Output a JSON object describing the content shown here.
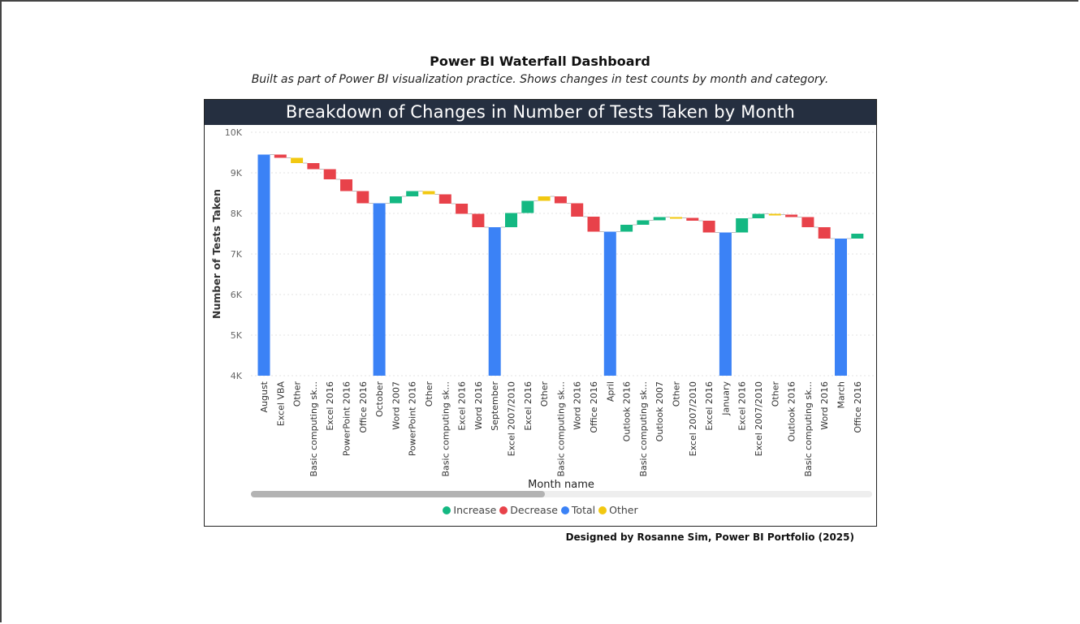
{
  "page": {
    "title": "Power BI Waterfall Dashboard",
    "subtitle": "Built as part of Power BI visualization practice. Shows changes in test counts by month and category.",
    "footer": "Designed by Rosanne Sim, Power BI Portfolio (2025)"
  },
  "colors": {
    "increase": "#14b882",
    "decrease": "#e8424a",
    "total": "#3b82f6",
    "other": "#f2c811",
    "title_bar": "#252f40"
  },
  "legend": [
    {
      "label": "Increase",
      "color_key": "increase"
    },
    {
      "label": "Decrease",
      "color_key": "decrease"
    },
    {
      "label": "Total",
      "color_key": "total"
    },
    {
      "label": "Other",
      "color_key": "other"
    }
  ],
  "chart_data": {
    "type": "waterfall",
    "title": "Breakdown of Changes in Number of Tests Taken by Month",
    "xlabel": "Month name",
    "ylabel": "Number of Tests Taken",
    "ylim": [
      4000,
      10000
    ],
    "yticks": [
      "4K",
      "5K",
      "6K",
      "7K",
      "8K",
      "9K",
      "10K"
    ],
    "grid": true,
    "legend_position": "bottom",
    "categories": [
      "August",
      "Excel VBA",
      "Other",
      "Basic computing sk...",
      "Excel 2016",
      "PowerPoint 2016",
      "Office 2016",
      "October",
      "Word 2007",
      "PowerPoint 2016",
      "Other",
      "Basic computing sk...",
      "Excel 2016",
      "Word 2016",
      "September",
      "Excel 2007/2010",
      "Excel 2016",
      "Other",
      "Basic computing sk...",
      "Word 2016",
      "Office 2016",
      "April",
      "Outlook 2016",
      "Basic computing sk...",
      "Outlook 2007",
      "Other",
      "Excel 2007/2010",
      "Excel 2016",
      "January",
      "Excel 2016",
      "Excel 2007/2010",
      "Other",
      "Outlook 2016",
      "Basic computing sk...",
      "Word 2016",
      "March",
      "Office 2016"
    ],
    "bars": [
      {
        "kind": "total",
        "start": 4000,
        "end": 9450
      },
      {
        "kind": "decrease",
        "start": 9450,
        "end": 9370
      },
      {
        "kind": "other",
        "start": 9370,
        "end": 9240
      },
      {
        "kind": "decrease",
        "start": 9240,
        "end": 9090
      },
      {
        "kind": "decrease",
        "start": 9090,
        "end": 8840
      },
      {
        "kind": "decrease",
        "start": 8840,
        "end": 8550
      },
      {
        "kind": "decrease",
        "start": 8550,
        "end": 8250
      },
      {
        "kind": "total",
        "start": 4000,
        "end": 8250
      },
      {
        "kind": "increase",
        "start": 8250,
        "end": 8420
      },
      {
        "kind": "increase",
        "start": 8420,
        "end": 8550
      },
      {
        "kind": "other",
        "start": 8550,
        "end": 8470
      },
      {
        "kind": "decrease",
        "start": 8470,
        "end": 8240
      },
      {
        "kind": "decrease",
        "start": 8240,
        "end": 7990
      },
      {
        "kind": "decrease",
        "start": 7990,
        "end": 7660
      },
      {
        "kind": "total",
        "start": 4000,
        "end": 7660
      },
      {
        "kind": "increase",
        "start": 7660,
        "end": 8010
      },
      {
        "kind": "increase",
        "start": 8010,
        "end": 8310
      },
      {
        "kind": "other",
        "start": 8310,
        "end": 8420
      },
      {
        "kind": "decrease",
        "start": 8420,
        "end": 8250
      },
      {
        "kind": "decrease",
        "start": 8250,
        "end": 7920
      },
      {
        "kind": "decrease",
        "start": 7920,
        "end": 7550
      },
      {
        "kind": "total",
        "start": 4000,
        "end": 7550
      },
      {
        "kind": "increase",
        "start": 7550,
        "end": 7720
      },
      {
        "kind": "increase",
        "start": 7720,
        "end": 7830
      },
      {
        "kind": "increase",
        "start": 7830,
        "end": 7910
      },
      {
        "kind": "other",
        "start": 7910,
        "end": 7890
      },
      {
        "kind": "decrease",
        "start": 7890,
        "end": 7820
      },
      {
        "kind": "decrease",
        "start": 7820,
        "end": 7530
      },
      {
        "kind": "total",
        "start": 4000,
        "end": 7530
      },
      {
        "kind": "increase",
        "start": 7530,
        "end": 7880
      },
      {
        "kind": "increase",
        "start": 7880,
        "end": 7990
      },
      {
        "kind": "other",
        "start": 7990,
        "end": 7970
      },
      {
        "kind": "decrease",
        "start": 7970,
        "end": 7910
      },
      {
        "kind": "decrease",
        "start": 7910,
        "end": 7660
      },
      {
        "kind": "decrease",
        "start": 7660,
        "end": 7380
      },
      {
        "kind": "total",
        "start": 4000,
        "end": 7380
      },
      {
        "kind": "increase",
        "start": 7380,
        "end": 7500
      }
    ]
  }
}
